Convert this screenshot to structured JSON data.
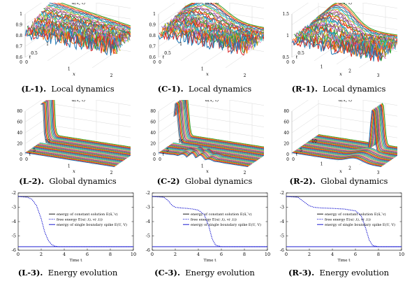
{
  "rows": [
    {
      "kind": "local",
      "panels": [
        {
          "id": "L-1",
          "caption_id": "(L-1).",
          "caption_text": "Local dynamics",
          "zlabel": "u(x, t)",
          "zticks": [
            "1",
            "0.9",
            "0.8",
            "0.7",
            "0.6"
          ],
          "tticks": [
            "1",
            "0.5",
            "0"
          ],
          "tlabel": "t",
          "xticks": [
            "0",
            "1",
            "2"
          ],
          "xlabel": "x"
        },
        {
          "id": "C-1",
          "caption_id": "(C-1).",
          "caption_text": "Local dynamics",
          "zlabel": "u(x, t)",
          "zticks": [
            "1",
            "0.9",
            "0.8",
            "0.7",
            "0.6"
          ],
          "tticks": [
            "1",
            "0.5",
            "0"
          ],
          "tlabel": "t",
          "xticks": [
            "0",
            "1",
            "2"
          ],
          "xlabel": "x"
        },
        {
          "id": "R-1",
          "caption_id": "(R-1).",
          "caption_text": "Local dynamics",
          "zlabel": "u(x, t)",
          "zticks": [
            "1.5",
            "1",
            "0.5"
          ],
          "tticks": [
            "1",
            "0.5",
            "0"
          ],
          "tlabel": "t",
          "xticks": [
            "0",
            "1",
            "2",
            "3"
          ],
          "xlabel": "x"
        }
      ]
    },
    {
      "kind": "global",
      "panels": [
        {
          "id": "L-2",
          "caption_id": "(L-2).",
          "caption_text": "Global dynamics",
          "zlabel": "u(x, t)",
          "zticks": [
            "80",
            "60",
            "40",
            "20",
            "0"
          ],
          "tticks": [
            "10",
            "5",
            "0"
          ],
          "tlabel": "t",
          "xticks": [
            "0",
            "1",
            "2"
          ],
          "xlabel": "x"
        },
        {
          "id": "C-2",
          "caption_id": "(C-2)",
          "caption_text": "Global dynamics",
          "zlabel": "u(x, t)",
          "zticks": [
            "80",
            "60",
            "40",
            "20",
            "0"
          ],
          "tticks": [
            "10",
            "5",
            "0"
          ],
          "tlabel": "t",
          "xticks": [
            "0",
            "1",
            "2"
          ],
          "xlabel": "x"
        },
        {
          "id": "R-2",
          "caption_id": "(R-2).",
          "caption_text": "Global dynamics",
          "zlabel": "u(x, t)",
          "zticks": [
            "80",
            "60",
            "40",
            "20",
            "0"
          ],
          "tticks": [
            "10",
            "5",
            "0"
          ],
          "tlabel": "t",
          "xticks": [
            "0",
            "1",
            "2",
            "3"
          ],
          "xlabel": "x"
        }
      ]
    },
    {
      "kind": "energy",
      "panels": [
        {
          "id": "L-3",
          "caption_id": "(L-3).",
          "caption_text": "Energy evolution",
          "xlabel": "Time t"
        },
        {
          "id": "C-3",
          "caption_id": "(C-3).",
          "caption_text": "Energy evolution",
          "xlabel": "Time t"
        },
        {
          "id": "R-3",
          "caption_id": "(R-3).",
          "caption_text": "Energy evolution",
          "xlabel": "Time t"
        }
      ]
    }
  ],
  "chart_data": [
    {
      "type": "line",
      "panel": "L-3",
      "xlabel": "Time t",
      "xlim": [
        0,
        10
      ],
      "ylim": [
        -6,
        -2
      ],
      "xticks": [
        0,
        2,
        4,
        6,
        8,
        10
      ],
      "yticks": [
        -2,
        -3,
        -4,
        -5,
        -6
      ],
      "legend": [
        "energy of constant solution E(ū, ̅v)",
        "free energy E(u(·,t), v(·,t))",
        "energy of single boundary spike E(U, V)"
      ],
      "legend_position": "center-right",
      "series": [
        {
          "name": "energy of constant solution E(ū, ̅v)",
          "color": "#000000",
          "style": "solid",
          "x": [
            0,
            10
          ],
          "y": [
            -2.25,
            -2.25
          ]
        },
        {
          "name": "free energy E(u(·,t), v(·,t))",
          "color": "#0000cc",
          "style": "dotted",
          "x": [
            0,
            0.8,
            1.2,
            1.6,
            2.0,
            2.3,
            2.6,
            2.9,
            3.2,
            3.5,
            4.0,
            10
          ],
          "y": [
            -2.25,
            -2.3,
            -2.45,
            -2.9,
            -3.8,
            -4.7,
            -5.3,
            -5.6,
            -5.72,
            -5.75,
            -5.75,
            -5.75
          ]
        },
        {
          "name": "energy of single boundary spike E(U, V)",
          "color": "#0000cc",
          "style": "solid",
          "x": [
            0,
            10
          ],
          "y": [
            -5.75,
            -5.75
          ]
        }
      ]
    },
    {
      "type": "line",
      "panel": "C-3",
      "xlabel": "Time t",
      "xlim": [
        0,
        10
      ],
      "ylim": [
        -6,
        -2
      ],
      "xticks": [
        0,
        2,
        4,
        6,
        8,
        10
      ],
      "yticks": [
        -2,
        -3,
        -4,
        -5,
        -6
      ],
      "legend": [
        "energy of constant solution E(ū, ̅v)",
        "free energy E(u(·,t), v(·,t))",
        "energy of single boundary spike E(U, V)"
      ],
      "legend_position": "center-right",
      "series": [
        {
          "name": "energy of constant solution E(ū, ̅v)",
          "color": "#000000",
          "style": "solid",
          "x": [
            0,
            10
          ],
          "y": [
            -2.25,
            -2.25
          ]
        },
        {
          "name": "free energy E(u(·,t), v(·,t))",
          "color": "#0000cc",
          "style": "dotted",
          "x": [
            0,
            1.0,
            1.4,
            1.7,
            2.0,
            2.5,
            3.0,
            3.5,
            4.0,
            4.5,
            4.9,
            5.2,
            5.5,
            6.0,
            10
          ],
          "y": [
            -2.25,
            -2.3,
            -2.55,
            -2.85,
            -3.0,
            -3.05,
            -3.08,
            -3.12,
            -3.2,
            -3.5,
            -4.3,
            -5.2,
            -5.65,
            -5.75,
            -5.75
          ]
        },
        {
          "name": "energy of single boundary spike E(U, V)",
          "color": "#0000cc",
          "style": "solid",
          "x": [
            0,
            10
          ],
          "y": [
            -5.75,
            -5.75
          ]
        }
      ]
    },
    {
      "type": "line",
      "panel": "R-3",
      "xlabel": "Time t",
      "xlim": [
        0,
        10
      ],
      "ylim": [
        -6,
        -2
      ],
      "xticks": [
        0,
        2,
        4,
        6,
        8,
        10
      ],
      "yticks": [
        -2,
        -3,
        -4,
        -5,
        -6
      ],
      "legend": [
        "energy of constant solution E(ū, ̅v)",
        "free energy E(u(·,t), v(·,t))",
        "energy of single boundary spike E(U, V)"
      ],
      "legend_position": "center-right",
      "series": [
        {
          "name": "energy of constant solution E(ū, ̅v)",
          "color": "#000000",
          "style": "solid",
          "x": [
            0,
            10
          ],
          "y": [
            -2.25,
            -2.25
          ]
        },
        {
          "name": "free energy E(u(·,t), v(·,t))",
          "color": "#0000cc",
          "style": "dotted",
          "x": [
            0,
            1.0,
            1.5,
            2.0,
            2.4,
            3.0,
            4.0,
            5.0,
            6.0,
            6.5,
            6.9,
            7.2,
            7.5,
            8.0,
            10
          ],
          "y": [
            -2.25,
            -2.3,
            -2.6,
            -2.9,
            -3.0,
            -3.05,
            -3.08,
            -3.12,
            -3.25,
            -3.6,
            -4.5,
            -5.3,
            -5.68,
            -5.75,
            -5.75
          ]
        },
        {
          "name": "energy of single boundary spike E(U, V)",
          "color": "#0000cc",
          "style": "solid",
          "x": [
            0,
            10
          ],
          "y": [
            -5.75,
            -5.75
          ]
        }
      ]
    }
  ]
}
